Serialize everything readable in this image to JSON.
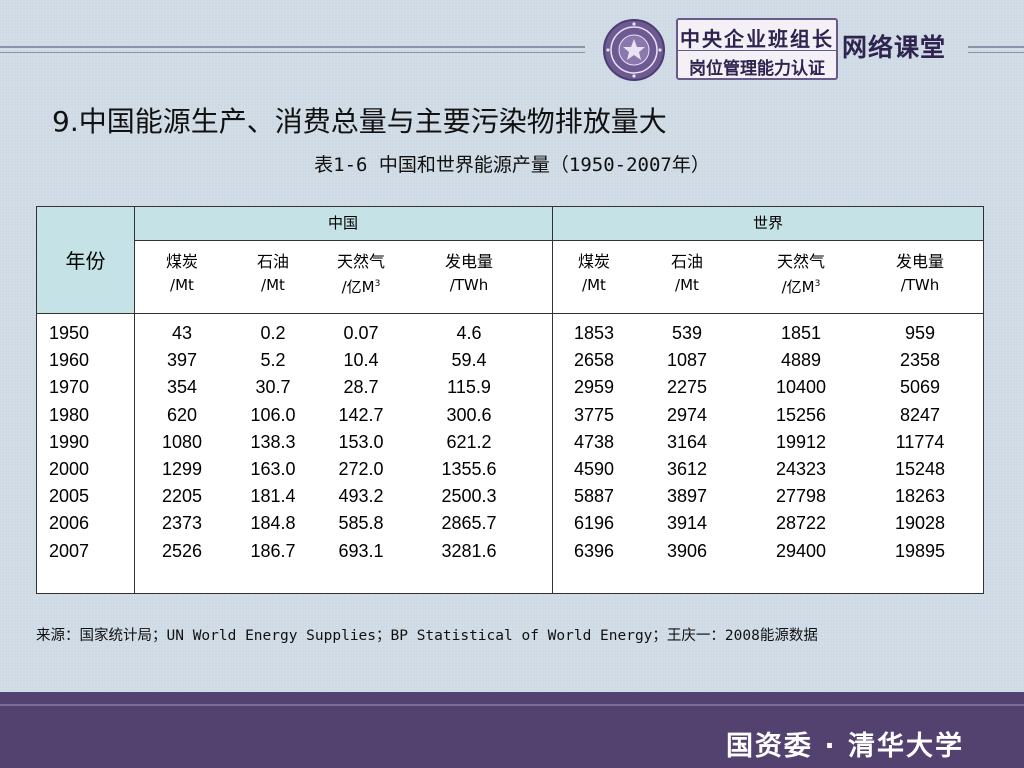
{
  "header": {
    "box_line1": "中央企业班组长",
    "box_line2": "岗位管理能力认证",
    "right_text": "网络课堂"
  },
  "title": "9.中国能源生产、消费总量与主要污染物排放量大",
  "table_title": "表1-6  中国和世界能源产量（1950-2007年）",
  "table": {
    "year_header": "年份",
    "group_china": "中国",
    "group_world": "世界",
    "columns": [
      {
        "name": "煤炭",
        "unit": "/Mt"
      },
      {
        "name": "石油",
        "unit": "/Mt"
      },
      {
        "name": "天然气",
        "unit_prefix": "/亿M",
        "unit_sup": "3"
      },
      {
        "name": "发电量",
        "unit": "/TWh"
      },
      {
        "name": "煤炭",
        "unit": "/Mt"
      },
      {
        "name": "石油",
        "unit": "/Mt"
      },
      {
        "name": "天然气",
        "unit_prefix": "/亿M",
        "unit_sup": "3"
      },
      {
        "name": "发电量",
        "unit": "/TWh"
      }
    ],
    "rows": [
      [
        "1950",
        "43",
        "0.2",
        "0.07",
        "4.6",
        "1853",
        "539",
        "1851",
        "959"
      ],
      [
        "1960",
        "397",
        "5.2",
        "10.4",
        "59.4",
        "2658",
        "1087",
        "4889",
        "2358"
      ],
      [
        "1970",
        "354",
        "30.7",
        "28.7",
        "115.9",
        "2959",
        "2275",
        "10400",
        "5069"
      ],
      [
        "1980",
        "620",
        "106.0",
        "142.7",
        "300.6",
        "3775",
        "2974",
        "15256",
        "8247"
      ],
      [
        "1990",
        "1080",
        "138.3",
        "153.0",
        "621.2",
        "4738",
        "3164",
        "19912",
        "11774"
      ],
      [
        "2000",
        "1299",
        "163.0",
        "272.0",
        "1355.6",
        "4590",
        "3612",
        "24323",
        "15248"
      ],
      [
        "2005",
        "2205",
        "181.4",
        "493.2",
        "2500.3",
        "5887",
        "3897",
        "27798",
        "18263"
      ],
      [
        "2006",
        "2373",
        "184.8",
        "585.8",
        "2865.7",
        "6196",
        "3914",
        "28722",
        "19028"
      ],
      [
        "2007",
        "2526",
        "186.7",
        "693.1",
        "3281.6",
        "6396",
        "3906",
        "29400",
        "19895"
      ]
    ]
  },
  "source": "来源：国家统计局；UN World Energy Supplies；BP  Statistical of World Energy；王庆一：2008能源数据",
  "footer": "国资委 · 清华大学",
  "colors": {
    "background": "#cdd9e3",
    "table_header": "#c5e3e6",
    "footer": "#53416f",
    "header_accent": "#2f2450"
  }
}
